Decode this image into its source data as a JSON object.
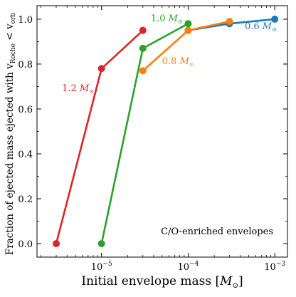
{
  "chart_data": {
    "type": "line",
    "xlabel_main": "Initial envelope mass [",
    "xlabel_sym": "M",
    "xlabel_sub": "⊙",
    "xlabel_end": "]",
    "ylabel_main": "Fraction of ejected mass ejected with v",
    "ylabel_sub1": "Roche",
    "ylabel_mid": " < v",
    "ylabel_sub2": "orb",
    "x_scale": "log",
    "xlim": [
      1.8e-06,
      0.0014
    ],
    "ylim": [
      -0.06,
      1.06
    ],
    "xticks": [
      {
        "value": 1e-05,
        "base": "10",
        "exp": "−5"
      },
      {
        "value": 0.0001,
        "base": "10",
        "exp": "−4"
      },
      {
        "value": 0.001,
        "base": "10",
        "exp": "−3"
      }
    ],
    "yticks": [
      {
        "value": 0.0,
        "label": "0.0"
      },
      {
        "value": 0.2,
        "label": "0.2"
      },
      {
        "value": 0.4,
        "label": "0.4"
      },
      {
        "value": 0.6,
        "label": "0.6"
      },
      {
        "value": 0.8,
        "label": "0.8"
      },
      {
        "value": 1.0,
        "label": "1.0"
      }
    ],
    "annotation": "C/O-enriched envelopes",
    "series": [
      {
        "name": "0.6 M⊙",
        "label_num": "0.6",
        "label_sym": "M",
        "label_sub": "⊙",
        "color": "#1f77b4",
        "label_at": {
          "x": 0.00045,
          "y": 0.955
        },
        "x": [
          0.0001,
          0.0003,
          0.001
        ],
        "y": [
          0.95,
          0.98,
          1.0
        ]
      },
      {
        "name": "0.8 M⊙",
        "label_num": "0.8",
        "label_sym": "M",
        "label_sub": "⊙",
        "color": "#ff7f0e",
        "label_at": {
          "x": 5e-05,
          "y": 0.8
        },
        "x": [
          3e-05,
          0.0001,
          0.0003
        ],
        "y": [
          0.77,
          0.95,
          0.99
        ]
      },
      {
        "name": "1.0 M⊙",
        "label_num": "1.0",
        "label_sym": "M",
        "label_sub": "⊙",
        "color": "#2ca02c",
        "label_at": {
          "x": 3.7e-05,
          "y": 0.99
        },
        "x": [
          1e-05,
          3e-05,
          0.0001
        ],
        "y": [
          0.0,
          0.87,
          0.98
        ]
      },
      {
        "name": "1.2 M⊙",
        "label_num": "1.2",
        "label_sym": "M",
        "label_sub": "⊙",
        "color": "#d62728",
        "label_at": {
          "x": 3.5e-06,
          "y": 0.68
        },
        "x": [
          3e-06,
          1e-05,
          3e-05
        ],
        "y": [
          0.0,
          0.78,
          0.95
        ]
      }
    ]
  }
}
